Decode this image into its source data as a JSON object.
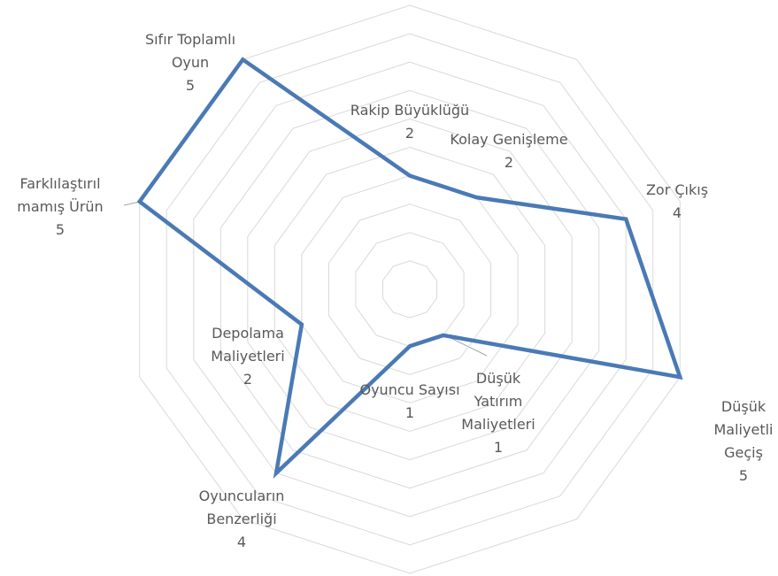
{
  "chart_data": {
    "type": "radar",
    "categories": [
      "Rakip Büyüklüğü",
      "Kolay Genişleme",
      "Zor Çıkış",
      "Düşük\nMaliyetli\nGeçiş",
      "Düşük\nYatırım\nMaliyetleri",
      "Oyuncu Sayısı",
      "Oyuncuların\nBenzerliği",
      "Depolama Maliyetleri",
      "Farklılaştırıl\nmamış Ürün",
      "Sıfır Toplamlı\nOyun"
    ],
    "values": [
      2,
      2,
      4,
      5,
      1,
      1,
      4,
      2,
      5,
      5
    ],
    "color": "#4a7ab5",
    "ylim": [
      0,
      5
    ],
    "yticks": [
      0,
      0.5,
      1,
      1.5,
      2,
      2.5,
      3,
      3.5,
      4,
      4.5,
      5
    ],
    "grid": true
  }
}
